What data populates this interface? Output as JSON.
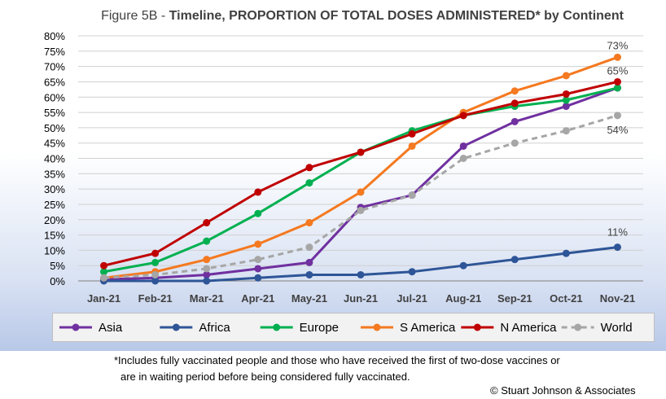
{
  "chart_data": {
    "type": "line",
    "title_prefix": "Figure 5B - ",
    "title_main": "Timeline, PROPORTION OF TOTAL DOSES ADMINISTERED* by Continent",
    "categories": [
      "Jan-21",
      "Feb-21",
      "Mar-21",
      "Apr-21",
      "May-21",
      "Jun-21",
      "Jul-21",
      "Aug-21",
      "Sep-21",
      "Oct-21",
      "Nov-21"
    ],
    "y_ticks": [
      "0%",
      "5%",
      "10%",
      "15%",
      "20%",
      "25%",
      "30%",
      "35%",
      "40%",
      "45%",
      "50%",
      "55%",
      "60%",
      "65%",
      "70%",
      "75%",
      "80%"
    ],
    "ylim": [
      0,
      80
    ],
    "series": [
      {
        "name": "Asia",
        "color": "#7030a0",
        "dashed": false,
        "values": [
          0.5,
          1,
          2,
          4,
          6,
          24,
          28,
          44,
          52,
          57,
          63
        ]
      },
      {
        "name": "Africa",
        "color": "#2e5597",
        "dashed": false,
        "values": [
          0,
          0,
          0,
          1,
          2,
          2,
          3,
          5,
          7,
          9,
          11
        ]
      },
      {
        "name": "Europe",
        "color": "#00b050",
        "dashed": false,
        "values": [
          3,
          6,
          13,
          22,
          32,
          42,
          49,
          54,
          57,
          59,
          63
        ]
      },
      {
        "name": "S America",
        "color": "#f47920",
        "dashed": false,
        "values": [
          1,
          3,
          7,
          12,
          19,
          29,
          44,
          55,
          62,
          67,
          73
        ]
      },
      {
        "name": "N America",
        "color": "#c00000",
        "dashed": false,
        "values": [
          5,
          9,
          19,
          29,
          37,
          42,
          48,
          54,
          58,
          61,
          65
        ]
      },
      {
        "name": "World",
        "color": "#a6a6a6",
        "dashed": true,
        "values": [
          1,
          2,
          4,
          7,
          11,
          23,
          28,
          40,
          45,
          49,
          54
        ]
      }
    ],
    "annotations": [
      {
        "text": "73%",
        "series": "S America"
      },
      {
        "text": "65%",
        "series": "N America"
      },
      {
        "text": "54%",
        "series": "World"
      },
      {
        "text": "11%",
        "series": "Africa"
      }
    ],
    "grid": true,
    "legend_position": "bottom"
  },
  "footnote_line1": "*Includes fully vaccinated people and those who have received the first of two-dose vaccines or",
  "footnote_line2": "are in waiting period before being considered fully vaccinated.",
  "copyright": "© Stuart Johnson & Associates"
}
